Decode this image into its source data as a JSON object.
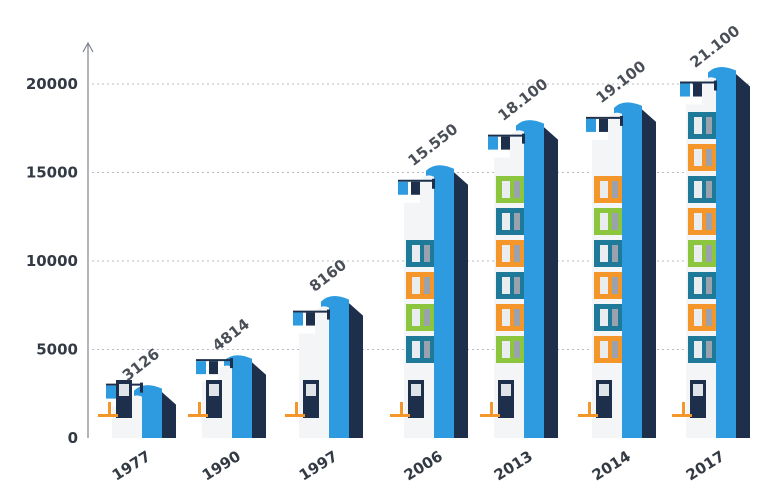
{
  "chart_data": {
    "type": "bar",
    "title": "",
    "xlabel": "",
    "ylabel": "",
    "ylim": [
      0,
      20000
    ],
    "yticks": [
      0,
      5000,
      10000,
      15000,
      20000
    ],
    "grid": true,
    "categories": [
      "1977",
      "1990",
      "1997",
      "2006",
      "2013",
      "2014",
      "2017"
    ],
    "values": [
      3126,
      4814,
      8160,
      15550,
      18100,
      19100,
      21100
    ],
    "value_labels": [
      "3126",
      "4814",
      "8160",
      "15.550",
      "18.100",
      "19.100",
      "21.100"
    ]
  },
  "colors": {
    "building_light": "#2e9be0",
    "building_dark": "#1d2f4a",
    "building_front": "#f3f5f7",
    "accent_orange": "#f4962a",
    "accent_green": "#8cc63f",
    "window_teal": "#1f7a99",
    "grid": "#b8bcc2",
    "text": "#333a44"
  },
  "icons": [
    "flag-banner-icon",
    "office-floor-icon",
    "entrance-door-icon",
    "crane-icon"
  ]
}
